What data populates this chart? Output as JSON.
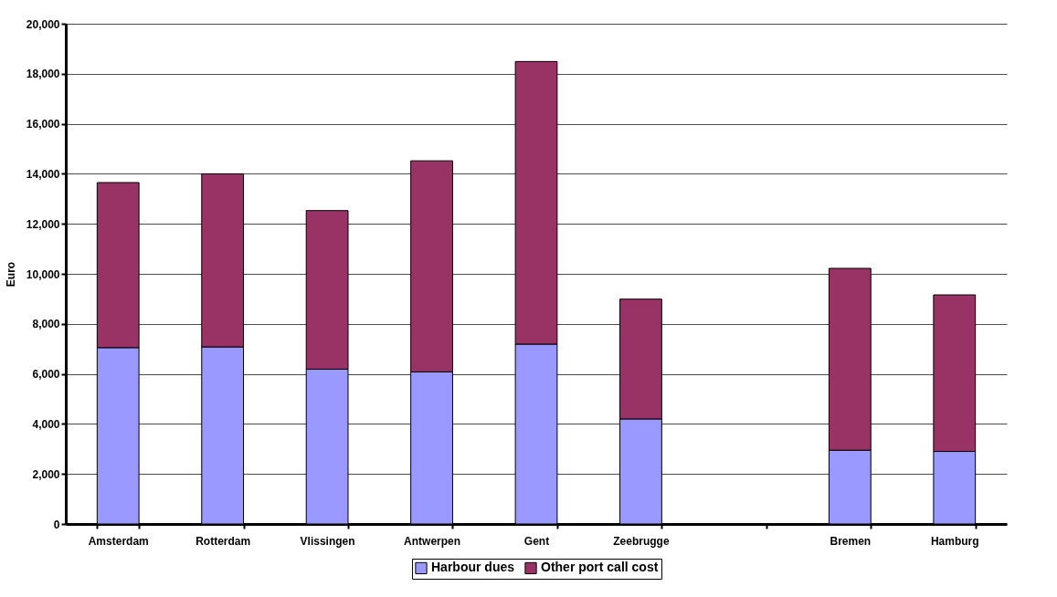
{
  "chart_data": {
    "type": "bar",
    "stacked": true,
    "ylabel": "Euro",
    "categories": [
      "Amsterdam",
      "Rotterdam",
      "Vlissingen",
      "Antwerpen",
      "Gent",
      "Zeebrugge",
      null,
      "Bremen",
      "Hamburg"
    ],
    "series": [
      {
        "name": "Harbour dues",
        "color": "#9999ff",
        "values": [
          7050,
          7080,
          6190,
          6080,
          7190,
          4200,
          null,
          2950,
          2900
        ]
      },
      {
        "name": "Other port call cost",
        "color": "#993366",
        "values": [
          6600,
          6920,
          6340,
          8440,
          11300,
          4790,
          null,
          7270,
          6260
        ]
      }
    ],
    "ylim": [
      0,
      20000
    ],
    "yticks": [
      0,
      {
        "value": 2000,
        "label": "2,000"
      },
      {
        "value": 4000,
        "label": "4,000"
      },
      {
        "value": 6000,
        "label": "6,000"
      },
      {
        "value": 8000,
        "label": "8,000"
      },
      {
        "value": 10000,
        "label": "10,000"
      },
      {
        "value": 12000,
        "label": "12,000"
      },
      {
        "value": 14000,
        "label": "14,000"
      },
      {
        "value": 16000,
        "label": "16,000"
      },
      {
        "value": 18000,
        "label": "18,000"
      },
      {
        "value": 20000,
        "label": "20,000"
      }
    ],
    "grid": "y",
    "legend": "bottom"
  }
}
